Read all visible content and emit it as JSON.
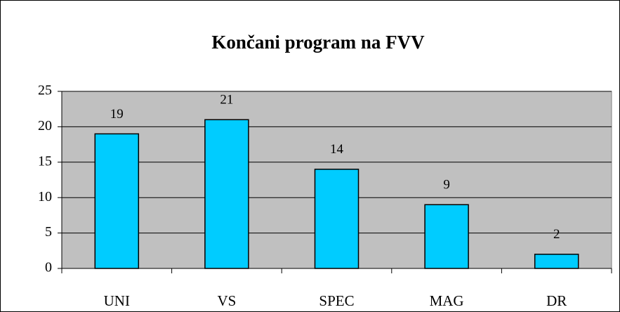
{
  "chart_data": {
    "type": "bar",
    "title": "Končani program na FVV",
    "categories": [
      "UNI",
      "VS",
      "SPEC",
      "MAG",
      "DR"
    ],
    "values": [
      19,
      21,
      14,
      9,
      2
    ],
    "color": "#00ccff",
    "plot_background": "#c0c0c0",
    "ylim": [
      0,
      25
    ],
    "yticks": [
      0,
      5,
      10,
      15,
      20,
      25
    ],
    "grid": true
  }
}
